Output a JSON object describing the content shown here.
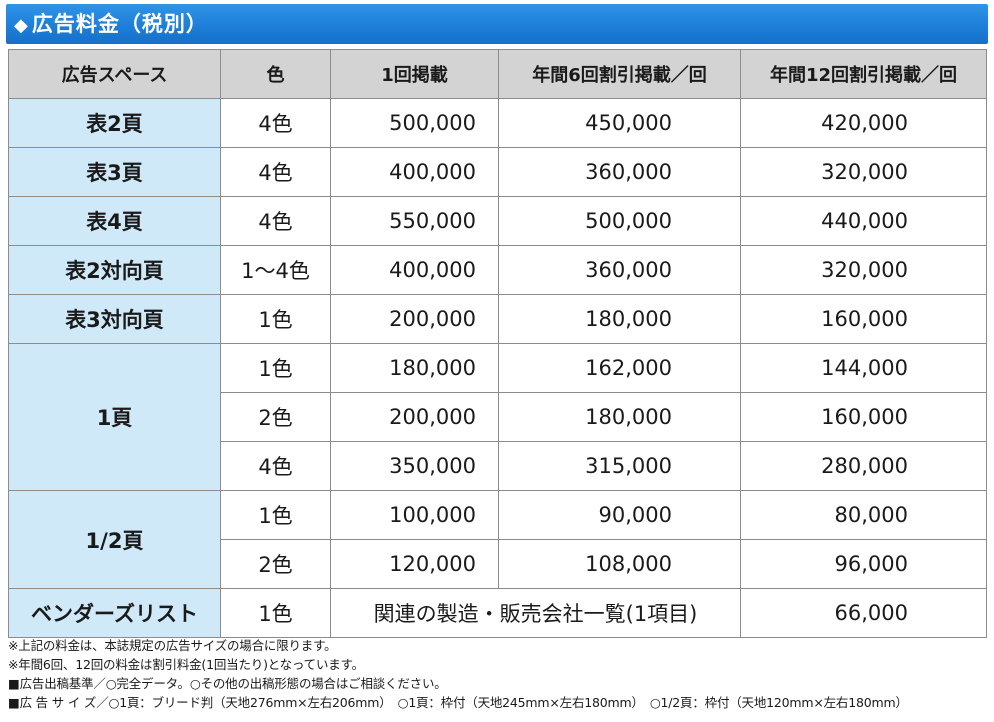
{
  "title": {
    "diamond": "◆",
    "text": "広告料金（税別）"
  },
  "headers": [
    "広告スペース",
    "色",
    "1回掲載",
    "年間6回割引掲載／回",
    "年間12回割引掲載／回"
  ],
  "rows": [
    {
      "space": "表2頁",
      "color": "4色",
      "once": "500,000",
      "six": "450,000",
      "twelve": "420,000"
    },
    {
      "space": "表3頁",
      "color": "4色",
      "once": "400,000",
      "six": "360,000",
      "twelve": "320,000"
    },
    {
      "space": "表4頁",
      "color": "4色",
      "once": "550,000",
      "six": "500,000",
      "twelve": "440,000"
    },
    {
      "space": "表2対向頁",
      "color": "1〜4色",
      "once": "400,000",
      "six": "360,000",
      "twelve": "320,000"
    },
    {
      "space": "表3対向頁",
      "color": "1色",
      "once": "200,000",
      "six": "180,000",
      "twelve": "160,000"
    }
  ],
  "one_page": {
    "space": "1頁",
    "rows": [
      {
        "color": "1色",
        "once": "180,000",
        "six": "162,000",
        "twelve": "144,000"
      },
      {
        "color": "2色",
        "once": "200,000",
        "six": "180,000",
        "twelve": "160,000"
      },
      {
        "color": "4色",
        "once": "350,000",
        "six": "315,000",
        "twelve": "280,000"
      }
    ]
  },
  "half_page": {
    "space": "1/2頁",
    "rows": [
      {
        "color": "1色",
        "once": "100,000",
        "six": "90,000",
        "twelve": "80,000"
      },
      {
        "color": "2色",
        "once": "120,000",
        "six": "108,000",
        "twelve": "96,000"
      }
    ]
  },
  "vendor_list": {
    "space": "ベンダーズリスト",
    "color": "1色",
    "note": "関連の製造・販売会社一覧(1項目)",
    "twelve": "66,000"
  },
  "notes": [
    "※上記の料金は、本誌規定の広告サイズの場合に限ります。",
    "※年間6回、12回の料金は割引料金(1回当たり)となっています。",
    "■広告出稿基準／○完全データ。○その他の出稿形態の場合はご相談ください。",
    "■広 告 サ イ ズ／○1頁：ブリード判（天地276mm×左右206mm）　○1頁：枠付（天地245mm×左右180mm）　○1/2頁：枠付（天地120mm×左右180mm）"
  ]
}
